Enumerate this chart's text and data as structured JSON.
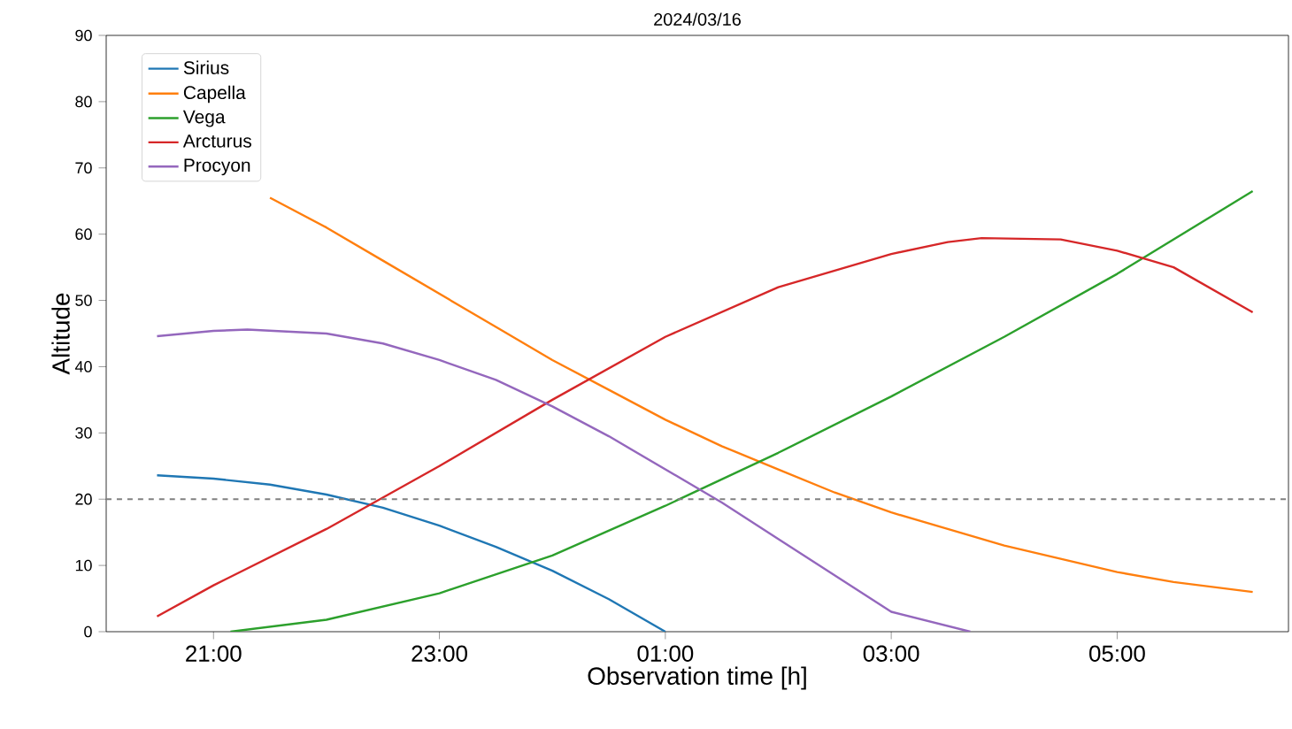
{
  "chart_data": {
    "type": "line",
    "title": "2024/03/16",
    "xlabel": "Observation time [h]",
    "ylabel": "Altitude",
    "xlim": [
      "2024-03-16T20:03",
      "2024-03-17T06:31"
    ],
    "ylim": [
      0,
      90
    ],
    "xticks": [
      {
        "value": "2024-03-16T21:00",
        "label": "21:00"
      },
      {
        "value": "2024-03-16T23:00",
        "label": "23:00"
      },
      {
        "value": "2024-03-17T01:00",
        "label": "01:00"
      },
      {
        "value": "2024-03-17T03:00",
        "label": "03:00"
      },
      {
        "value": "2024-03-17T05:00",
        "label": "05:00"
      }
    ],
    "yticks": [
      0,
      10,
      20,
      30,
      40,
      50,
      60,
      70,
      80,
      90
    ],
    "legend": "top left",
    "grid": false,
    "marker": "none",
    "line_style": "solid",
    "ref_lines": [
      {
        "axis": "y",
        "value": 20,
        "color": "#808080",
        "line_style": "dashed"
      }
    ],
    "series": [
      {
        "name": "Sirius",
        "color": "#1f77b4",
        "x": [
          "2024-03-16T20:30",
          "2024-03-16T21:00",
          "2024-03-16T21:30",
          "2024-03-16T22:00",
          "2024-03-16T22:30",
          "2024-03-16T23:00",
          "2024-03-16T23:30",
          "2024-03-17T00:00",
          "2024-03-17T00:30",
          "2024-03-17T01:00"
        ],
        "values": [
          23.6,
          23.1,
          22.2,
          20.7,
          18.7,
          16,
          12.8,
          9.2,
          4.9,
          0
        ]
      },
      {
        "name": "Capella",
        "color": "#ff7f0e",
        "x": [
          "2024-03-16T21:30",
          "2024-03-16T22:00",
          "2024-03-16T22:30",
          "2024-03-16T23:00",
          "2024-03-16T23:30",
          "2024-03-17T00:00",
          "2024-03-17T00:30",
          "2024-03-17T01:00",
          "2024-03-17T01:30",
          "2024-03-17T02:00",
          "2024-03-17T02:30",
          "2024-03-17T03:00",
          "2024-03-17T03:30",
          "2024-03-17T04:00",
          "2024-03-17T04:30",
          "2024-03-17T05:00",
          "2024-03-17T05:30",
          "2024-03-17T06:12"
        ],
        "values": [
          65.5,
          61,
          56,
          51,
          46,
          41,
          36.5,
          32,
          28,
          24.5,
          21,
          18,
          15.5,
          13,
          11,
          9,
          7.5,
          6
        ]
      },
      {
        "name": "Vega",
        "color": "#2ca02c",
        "x": [
          "2024-03-16T21:09",
          "2024-03-16T22:00",
          "2024-03-16T23:00",
          "2024-03-17T00:00",
          "2024-03-17T01:00",
          "2024-03-17T02:00",
          "2024-03-17T03:00",
          "2024-03-17T04:00",
          "2024-03-17T05:00",
          "2024-03-17T06:12"
        ],
        "values": [
          0,
          1.8,
          5.8,
          11.5,
          19,
          27,
          35.5,
          44.5,
          54,
          66.5
        ]
      },
      {
        "name": "Arcturus",
        "color": "#d62728",
        "x": [
          "2024-03-16T20:30",
          "2024-03-16T21:00",
          "2024-03-16T22:00",
          "2024-03-16T23:00",
          "2024-03-17T00:00",
          "2024-03-17T01:00",
          "2024-03-17T02:00",
          "2024-03-17T03:00",
          "2024-03-17T03:30",
          "2024-03-17T03:48",
          "2024-03-17T04:30",
          "2024-03-17T05:00",
          "2024-03-17T05:30",
          "2024-03-17T06:12"
        ],
        "values": [
          2.3,
          7,
          15.5,
          25,
          35,
          44.5,
          52,
          57,
          58.8,
          59.4,
          59.2,
          57.5,
          55,
          48.2
        ]
      },
      {
        "name": "Procyon",
        "color": "#9467bd",
        "x": [
          "2024-03-16T20:30",
          "2024-03-16T21:00",
          "2024-03-16T21:18",
          "2024-03-16T22:00",
          "2024-03-16T22:30",
          "2024-03-16T23:00",
          "2024-03-16T23:30",
          "2024-03-17T00:00",
          "2024-03-17T00:30",
          "2024-03-17T01:00",
          "2024-03-17T01:30",
          "2024-03-17T02:00",
          "2024-03-17T02:30",
          "2024-03-17T03:00",
          "2024-03-17T03:42"
        ],
        "values": [
          44.6,
          45.4,
          45.6,
          45,
          43.5,
          41,
          38,
          34,
          29.5,
          24.5,
          19.5,
          14,
          8.5,
          3,
          0
        ]
      }
    ]
  }
}
